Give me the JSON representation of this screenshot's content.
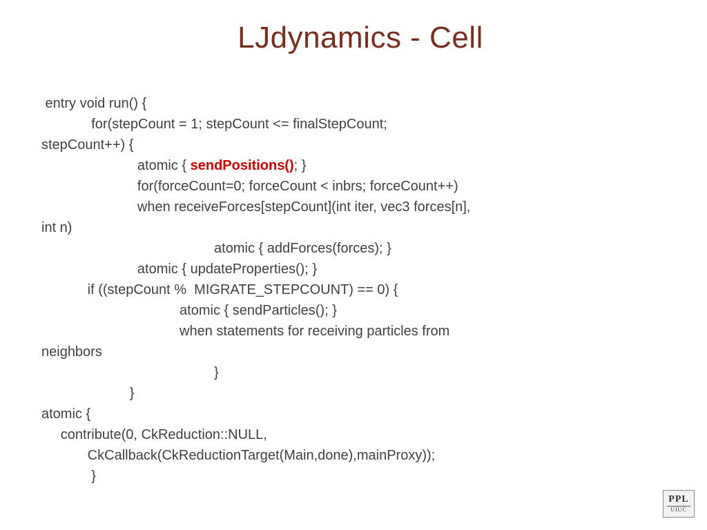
{
  "title": "LJdynamics - Cell",
  "title_color": "#7a2e1e",
  "title_fontsize": 44,
  "body_color": "#404040",
  "body_fontsize": 20,
  "highlight_color": "#d40000",
  "background_color": "#ffffff",
  "code": {
    "l1": " entry void run() {",
    "l2": "             for(stepCount = 1; stepCount <= finalStepCount;",
    "l3": "stepCount++) {",
    "l4a": "                         atomic { ",
    "l4b": "sendPositions()",
    "l4c": "; }",
    "l5": "                         for(forceCount=0; forceCount < inbrs; forceCount++)",
    "l6": "                         when receiveForces[stepCount](int iter, vec3 forces[n],",
    "l7": "int n)",
    "l8": "                                             atomic { addForces(forces); }",
    "l9": "                         atomic { updateProperties(); }",
    "l10": "            if ((stepCount %  MIGRATE_STEPCOUNT) == 0) {",
    "l11": "                                    atomic { sendParticles(); }",
    "l12": "                                    when statements for receiving particles from",
    "l13": "neighbors",
    "l14": "                                             }",
    "l15": "                       }",
    "l16": "atomic {",
    "l17": "     contribute(0, CkReduction::NULL,",
    "l18": "            CkCallback(CkReductionTarget(Main,done),mainProxy));",
    "l19": "             }"
  },
  "logo": {
    "top": "PPL",
    "bottom": "UIUC"
  }
}
